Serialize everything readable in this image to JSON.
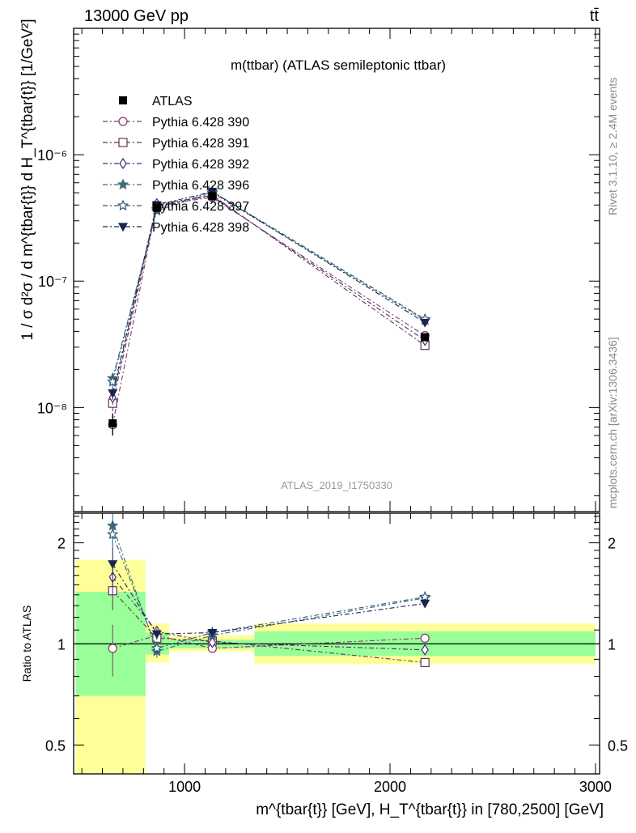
{
  "header": {
    "energy_label": "13000 GeV pp",
    "process_label": "tt̄"
  },
  "side_labels": {
    "rivet": "Rivet 3.1.10, ≥ 2.4M events",
    "mcplots": "mcplots.cern.ch [arXiv:1306.3436]"
  },
  "chart_data": [
    {
      "type": "scatter",
      "panel": "main",
      "title": "m(ttbar) (ATLAS semileptonic ttbar)",
      "watermark": "ATLAS_2019_I1750330",
      "ylabel": "1 / σ d²σ / d m^{tbar{t}} d H_T^{tbar{t}} [1/GeV²]",
      "yscale": "log",
      "ylim": [
        1.5e-09,
        1e-05
      ],
      "xlim": [
        460,
        3020
      ],
      "yticks": [
        {
          "v": 1e-08,
          "label": "10⁻⁸"
        },
        {
          "v": 1e-07,
          "label": "10⁻⁷"
        },
        {
          "v": 1e-06,
          "label": "10⁻⁶"
        }
      ],
      "legend_position": "top-left",
      "data": {
        "name": "ATLAS",
        "x": [
          650,
          865,
          1135,
          2170
        ],
        "y": [
          7.5e-09,
          3.8e-07,
          4.7e-07,
          3.6e-08
        ],
        "yerr_low": [
          1.5e-09,
          2e-08,
          2e-08,
          2e-09
        ],
        "yerr_high": [
          1.5e-09,
          2e-08,
          2e-08,
          2e-09
        ]
      },
      "series": [
        {
          "name": "Pythia 6.428 390",
          "color": "#7a3d6a",
          "marker": "circle-open",
          "x": [
            650,
            865,
            1135,
            2170
          ],
          "y": [
            7.3e-09,
            4e-07,
            4.6e-07,
            3.7e-08
          ],
          "err": [
            1.3e-09,
            1.5e-08,
            1.5e-08,
            1.5e-09
          ]
        },
        {
          "name": "Pythia 6.428 391",
          "color": "#6b3555",
          "marker": "square-open",
          "x": [
            650,
            865,
            1135,
            2170
          ],
          "y": [
            1.08e-08,
            3.9e-07,
            4.8e-07,
            3.1e-08
          ],
          "err": [
            1.5e-09,
            1.5e-08,
            1.5e-08,
            1.5e-09
          ]
        },
        {
          "name": "Pythia 6.428 392",
          "color": "#4a2e78",
          "marker": "diamond-open",
          "x": [
            650,
            865,
            1135,
            2170
          ],
          "y": [
            1.2e-08,
            4.1e-07,
            4.7e-07,
            3.4e-08
          ],
          "err": [
            1.5e-09,
            1.5e-08,
            1.5e-08,
            1.5e-09
          ]
        },
        {
          "name": "Pythia 6.428 396",
          "color": "#3f6a78",
          "marker": "star-filled",
          "x": [
            650,
            865,
            1135,
            2170
          ],
          "y": [
            1.7e-08,
            3.6e-07,
            5e-07,
            4.9e-08
          ],
          "err": [
            1.5e-09,
            1.5e-08,
            1.5e-08,
            1.5e-09
          ]
        },
        {
          "name": "Pythia 6.428 397",
          "color": "#2f5a78",
          "marker": "star-open",
          "x": [
            650,
            865,
            1135,
            2170
          ],
          "y": [
            1.6e-08,
            3.7e-07,
            5.1e-07,
            5e-08
          ],
          "err": [
            1.5e-09,
            1.5e-08,
            1.5e-08,
            1.5e-09
          ]
        },
        {
          "name": "Pythia 6.428 398",
          "color": "#1a2450",
          "marker": "triangle-down-filled",
          "x": [
            650,
            865,
            1135,
            2170
          ],
          "y": [
            1.3e-08,
            4e-07,
            5.1e-07,
            4.7e-08
          ],
          "err": [
            1.5e-09,
            1.5e-08,
            1.5e-08,
            1.5e-09
          ]
        }
      ]
    },
    {
      "type": "scatter",
      "panel": "ratio",
      "ylabel": "Ratio to ATLAS",
      "xlabel": "m^{tbar{t}} [GeV], H_T^{tbar{t}} in [780,2500] [GeV]",
      "yscale": "log",
      "ylim": [
        0.41,
        2.45
      ],
      "xlim": [
        460,
        3020
      ],
      "yticks": [
        {
          "v": 0.5,
          "label": "0.5"
        },
        {
          "v": 1,
          "label": "1"
        },
        {
          "v": 2,
          "label": "2"
        }
      ],
      "xticks": [
        {
          "v": 1000,
          "label": "1000"
        },
        {
          "v": 2000,
          "label": "2000"
        },
        {
          "v": 3000,
          "label": "3000"
        }
      ],
      "bands": [
        {
          "x0": 470,
          "x1": 810,
          "yellow": [
            0.41,
            1.78
          ],
          "green": [
            0.7,
            1.43
          ]
        },
        {
          "x0": 810,
          "x1": 925,
          "yellow": [
            0.88,
            1.15
          ],
          "green": [
            0.93,
            1.08
          ]
        },
        {
          "x0": 925,
          "x1": 1340,
          "yellow": [
            0.95,
            1.06
          ],
          "green": [
            0.97,
            1.03
          ]
        },
        {
          "x0": 1340,
          "x1": 3000,
          "yellow": [
            0.87,
            1.15
          ],
          "green": [
            0.92,
            1.09
          ]
        }
      ],
      "series": [
        {
          "name": "Pythia 6.428 390",
          "x": [
            650,
            865,
            1135,
            2170
          ],
          "y": [
            0.97,
            1.06,
            0.97,
            1.04
          ],
          "err": [
            0.17,
            0.04,
            0.02,
            0.02
          ]
        },
        {
          "name": "Pythia 6.428 391",
          "x": [
            650,
            865,
            1135,
            2170
          ],
          "y": [
            1.44,
            1.04,
            1.02,
            0.88
          ],
          "err": [
            0.18,
            0.04,
            0.02,
            0.02
          ]
        },
        {
          "name": "Pythia 6.428 392",
          "x": [
            650,
            865,
            1135,
            2170
          ],
          "y": [
            1.58,
            1.09,
            1.01,
            0.96
          ],
          "err": [
            0.18,
            0.04,
            0.02,
            0.02
          ]
        },
        {
          "name": "Pythia 6.428 396",
          "x": [
            650,
            865,
            1135,
            2170
          ],
          "y": [
            2.25,
            0.95,
            1.06,
            1.37
          ],
          "err": [
            0.2,
            0.04,
            0.02,
            0.03
          ]
        },
        {
          "name": "Pythia 6.428 397",
          "x": [
            650,
            865,
            1135,
            2170
          ],
          "y": [
            2.12,
            0.97,
            1.08,
            1.38
          ],
          "err": [
            0.2,
            0.04,
            0.02,
            0.03
          ]
        },
        {
          "name": "Pythia 6.428 398",
          "x": [
            650,
            865,
            1135,
            2170
          ],
          "y": [
            1.73,
            1.07,
            1.08,
            1.32
          ],
          "err": [
            0.2,
            0.04,
            0.02,
            0.03
          ]
        }
      ]
    }
  ]
}
